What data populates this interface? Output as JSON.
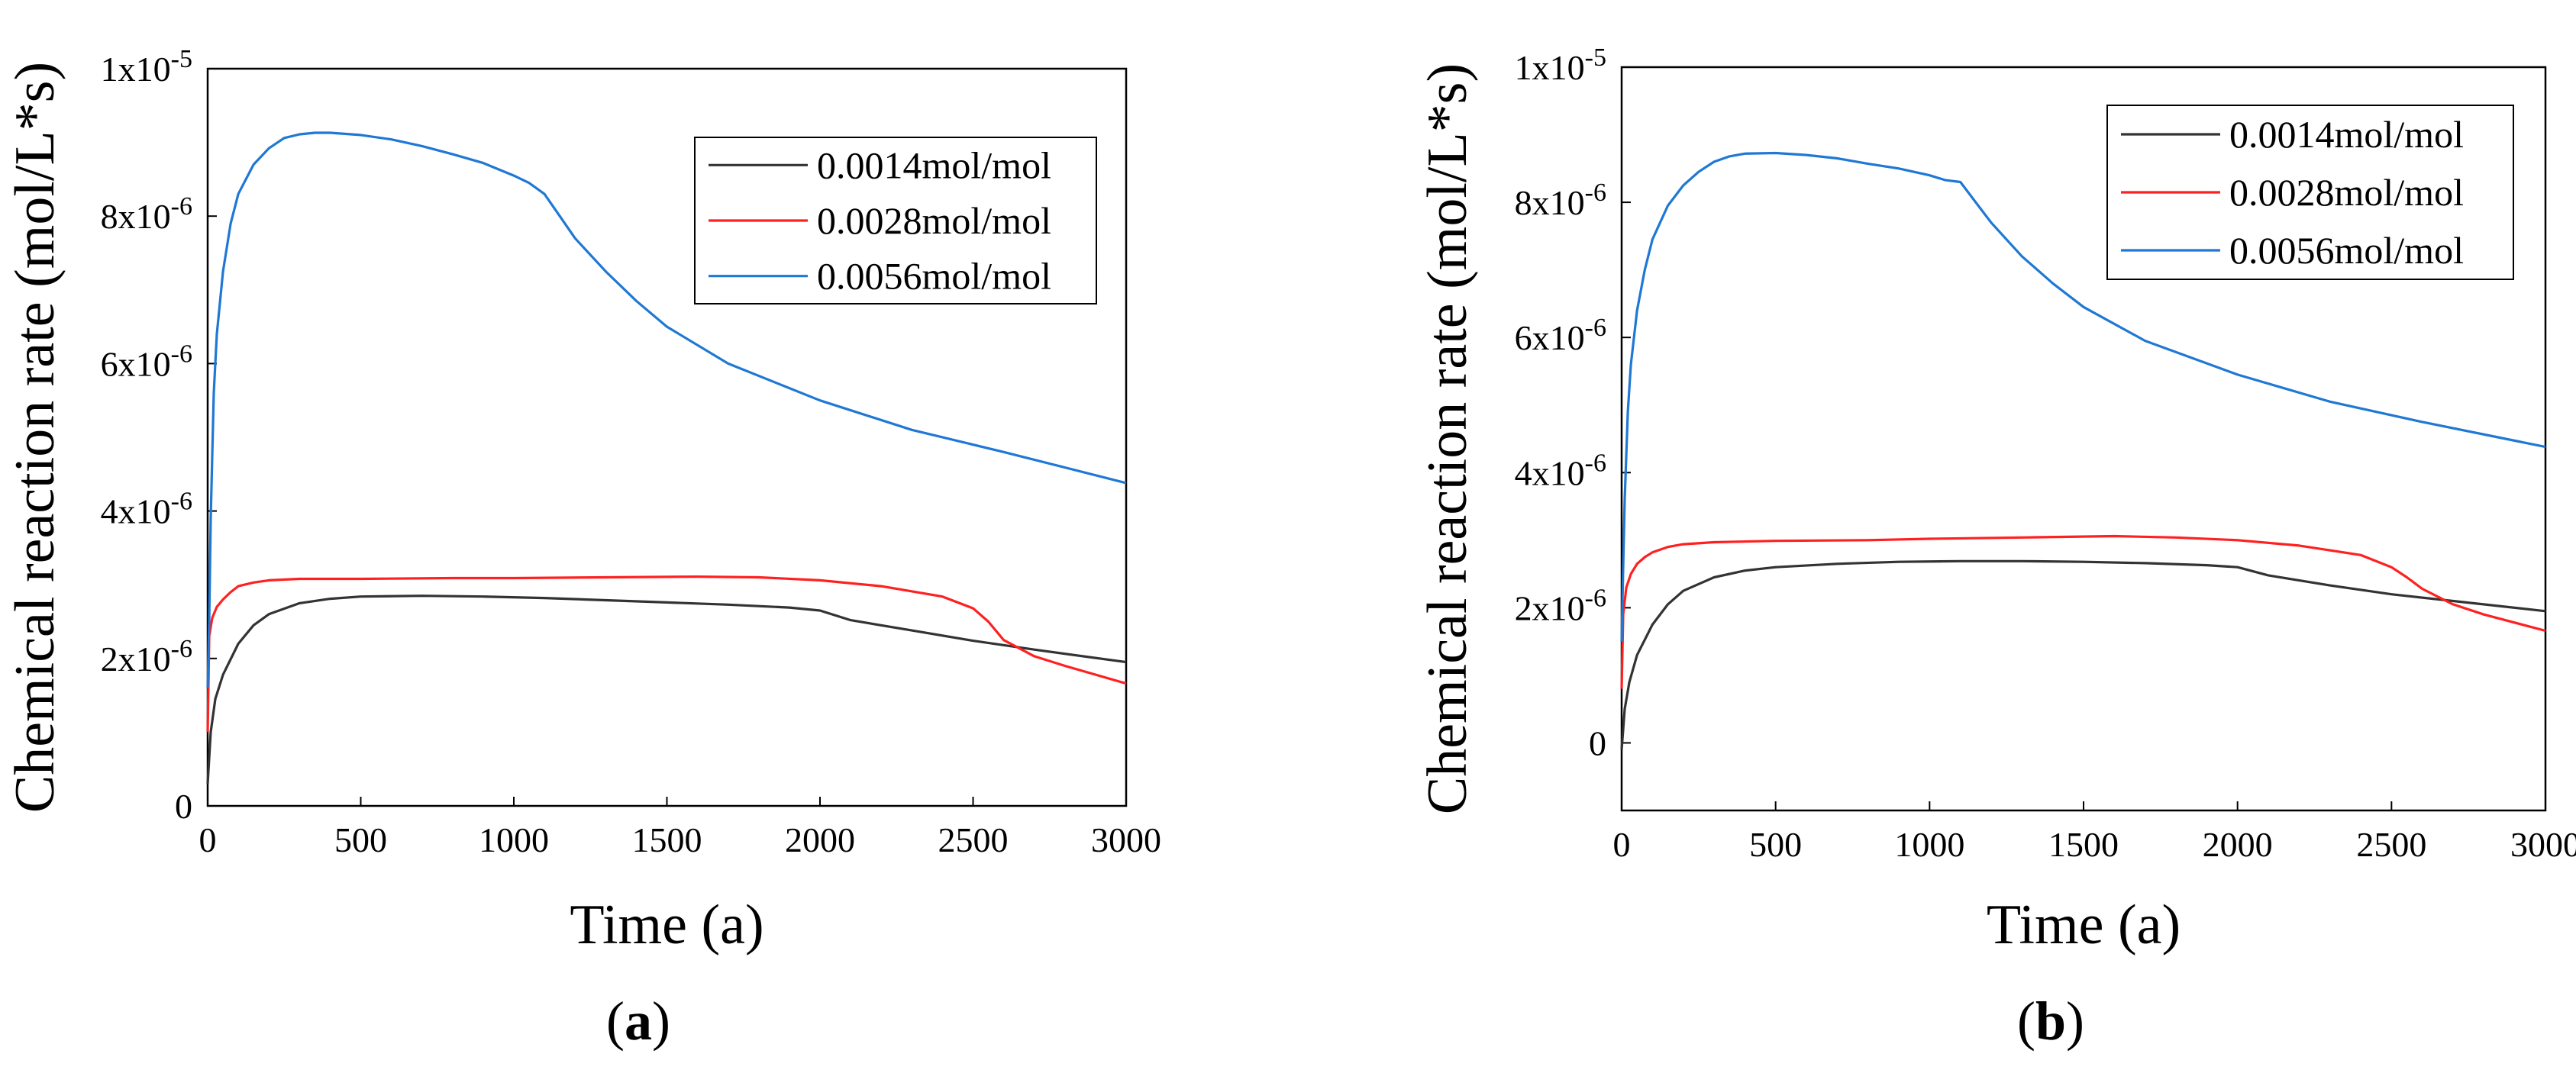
{
  "chart_data": [
    {
      "type": "line",
      "panel_label": "a",
      "xlabel": "Time (a)",
      "ylabel": "Chemical reaction rate (mol/L*s)",
      "xlim": [
        0,
        3000
      ],
      "ylim": [
        0,
        1e-05
      ],
      "x_ticks": [
        {
          "value": 0,
          "label": "0"
        },
        {
          "value": 500,
          "label": "500"
        },
        {
          "value": 1000,
          "label": "1000"
        },
        {
          "value": 1500,
          "label": "1500"
        },
        {
          "value": 2000,
          "label": "2000"
        },
        {
          "value": 2500,
          "label": "2500"
        },
        {
          "value": 3000,
          "label": "3000"
        }
      ],
      "y_ticks": [
        {
          "value": 0,
          "label": "0",
          "mant": "0",
          "exp": ""
        },
        {
          "value": 2e-06,
          "label": "2x10-6",
          "mant": "2x10",
          "exp": "-6"
        },
        {
          "value": 4e-06,
          "label": "4x10-6",
          "mant": "4x10",
          "exp": "-6"
        },
        {
          "value": 6e-06,
          "label": "6x10-6",
          "mant": "6x10",
          "exp": "-6"
        },
        {
          "value": 8e-06,
          "label": "8x10-6",
          "mant": "8x10",
          "exp": "-6"
        },
        {
          "value": 1e-05,
          "label": "1x10-5",
          "mant": "1x10",
          "exp": "-5"
        }
      ],
      "legend_position": "top-right",
      "series": [
        {
          "name": "0.0014mol/mol",
          "color": "#333333",
          "x": [
            0,
            10,
            25,
            50,
            100,
            150,
            200,
            300,
            400,
            500,
            700,
            900,
            1100,
            1300,
            1500,
            1700,
            1900,
            2000,
            2100,
            2300,
            2500,
            2700,
            3000
          ],
          "y": [
            3e-07,
            1e-06,
            1.45e-06,
            1.78e-06,
            2.2e-06,
            2.45e-06,
            2.6e-06,
            2.75e-06,
            2.81e-06,
            2.84e-06,
            2.85e-06,
            2.84e-06,
            2.82e-06,
            2.79e-06,
            2.76e-06,
            2.73e-06,
            2.69e-06,
            2.65e-06,
            2.52e-06,
            2.38e-06,
            2.24e-06,
            2.12e-06,
            1.95e-06
          ]
        },
        {
          "name": "0.0028mol/mol",
          "color": "#ff2020",
          "x": [
            0,
            5,
            15,
            30,
            50,
            75,
            100,
            150,
            200,
            300,
            500,
            800,
            1000,
            1300,
            1600,
            1800,
            2000,
            2200,
            2400,
            2500,
            2550,
            2600,
            2700,
            2800,
            3000
          ],
          "y": [
            1e-06,
            2.3e-06,
            2.55e-06,
            2.7e-06,
            2.8e-06,
            2.9e-06,
            2.98e-06,
            3.03e-06,
            3.06e-06,
            3.08e-06,
            3.08e-06,
            3.09e-06,
            3.09e-06,
            3.1e-06,
            3.11e-06,
            3.1e-06,
            3.06e-06,
            2.98e-06,
            2.84e-06,
            2.68e-06,
            2.5e-06,
            2.25e-06,
            2.03e-06,
            1.9e-06,
            1.66e-06
          ]
        },
        {
          "name": "0.0056mol/mol",
          "color": "#1f78d4",
          "x": [
            0,
            5,
            10,
            20,
            30,
            50,
            75,
            100,
            150,
            200,
            250,
            300,
            350,
            400,
            500,
            600,
            700,
            800,
            900,
            1000,
            1050,
            1100,
            1150,
            1200,
            1300,
            1400,
            1500,
            1700,
            2000,
            2300,
            2600,
            3000
          ],
          "y": [
            1.6e-06,
            2.5e-06,
            3.9e-06,
            5.6e-06,
            6.4e-06,
            7.25e-06,
            7.9e-06,
            8.3e-06,
            8.7e-06,
            8.92e-06,
            9.06e-06,
            9.11e-06,
            9.13e-06,
            9.13e-06,
            9.1e-06,
            9.04e-06,
            8.95e-06,
            8.84e-06,
            8.72e-06,
            8.55e-06,
            8.45e-06,
            8.3e-06,
            8e-06,
            7.7e-06,
            7.25e-06,
            6.85e-06,
            6.5e-06,
            6e-06,
            5.5e-06,
            5.1e-06,
            4.8e-06,
            4.38e-06
          ]
        }
      ]
    },
    {
      "type": "line",
      "panel_label": "b",
      "xlabel": "Time (a)",
      "ylabel": "Chemical reaction rate (mol/L*s)",
      "xlim": [
        0,
        3000
      ],
      "ylim": [
        -1e-06,
        1e-05
      ],
      "x_ticks": [
        {
          "value": 0,
          "label": "0"
        },
        {
          "value": 500,
          "label": "500"
        },
        {
          "value": 1000,
          "label": "1000"
        },
        {
          "value": 1500,
          "label": "1500"
        },
        {
          "value": 2000,
          "label": "2000"
        },
        {
          "value": 2500,
          "label": "2500"
        },
        {
          "value": 3000,
          "label": "3000"
        }
      ],
      "y_ticks": [
        {
          "value": 0,
          "label": "0",
          "mant": "0",
          "exp": ""
        },
        {
          "value": 2e-06,
          "label": "2x10-6",
          "mant": "2x10",
          "exp": "-6"
        },
        {
          "value": 4e-06,
          "label": "4x10-6",
          "mant": "4x10",
          "exp": "-6"
        },
        {
          "value": 6e-06,
          "label": "6x10-6",
          "mant": "6x10",
          "exp": "-6"
        },
        {
          "value": 8e-06,
          "label": "8x10-6",
          "mant": "8x10",
          "exp": "-6"
        },
        {
          "value": 1e-05,
          "label": "1x10-5",
          "mant": "1x10",
          "exp": "-5"
        }
      ],
      "legend_position": "top-right",
      "series": [
        {
          "name": "0.0014mol/mol",
          "color": "#333333",
          "x": [
            0,
            10,
            25,
            50,
            100,
            150,
            200,
            300,
            400,
            500,
            700,
            900,
            1100,
            1300,
            1500,
            1700,
            1900,
            2000,
            2100,
            2300,
            2500,
            2700,
            3000
          ],
          "y": [
            -1e-07,
            5e-07,
            9e-07,
            1.3e-06,
            1.75e-06,
            2.05e-06,
            2.25e-06,
            2.45e-06,
            2.55e-06,
            2.6e-06,
            2.65e-06,
            2.68e-06,
            2.69e-06,
            2.69e-06,
            2.68e-06,
            2.66e-06,
            2.63e-06,
            2.6e-06,
            2.48e-06,
            2.33e-06,
            2.2e-06,
            2.1e-06,
            1.95e-06
          ]
        },
        {
          "name": "0.0028mol/mol",
          "color": "#ff2020",
          "x": [
            0,
            5,
            15,
            30,
            50,
            75,
            100,
            150,
            200,
            300,
            500,
            800,
            1000,
            1300,
            1600,
            1800,
            2000,
            2200,
            2400,
            2500,
            2550,
            2600,
            2700,
            2800,
            3000
          ],
          "y": [
            8e-07,
            1.9e-06,
            2.3e-06,
            2.5e-06,
            2.65e-06,
            2.75e-06,
            2.82e-06,
            2.9e-06,
            2.94e-06,
            2.97e-06,
            2.99e-06,
            3e-06,
            3.02e-06,
            3.04e-06,
            3.06e-06,
            3.04e-06,
            3e-06,
            2.92e-06,
            2.78e-06,
            2.6e-06,
            2.45e-06,
            2.28e-06,
            2.05e-06,
            1.9e-06,
            1.66e-06
          ]
        },
        {
          "name": "0.0056mol/mol",
          "color": "#1f78d4",
          "x": [
            0,
            5,
            10,
            20,
            30,
            50,
            75,
            100,
            150,
            200,
            250,
            300,
            350,
            400,
            500,
            600,
            700,
            800,
            900,
            1000,
            1050,
            1100,
            1150,
            1200,
            1300,
            1400,
            1500,
            1700,
            2000,
            2300,
            2600,
            3000
          ],
          "y": [
            1.5e-06,
            2.6e-06,
            3.6e-06,
            4.9e-06,
            5.6e-06,
            6.4e-06,
            7e-06,
            7.45e-06,
            7.95e-06,
            8.25e-06,
            8.45e-06,
            8.6e-06,
            8.68e-06,
            8.72e-06,
            8.73e-06,
            8.7e-06,
            8.65e-06,
            8.57e-06,
            8.5e-06,
            8.4e-06,
            8.33e-06,
            8.3e-06,
            8e-06,
            7.7e-06,
            7.2e-06,
            6.8e-06,
            6.45e-06,
            5.95e-06,
            5.45e-06,
            5.05e-06,
            4.75e-06,
            4.38e-06
          ]
        }
      ]
    }
  ]
}
